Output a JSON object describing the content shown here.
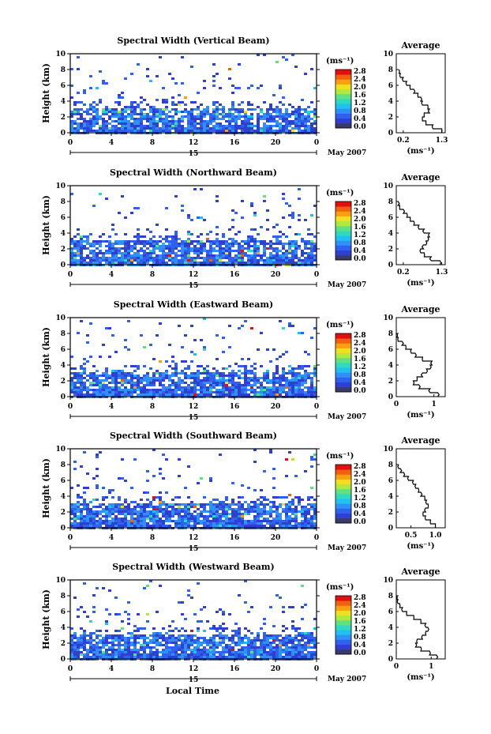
{
  "xlabel": "Local Time",
  "date_label": "May 2007",
  "day_label": "15",
  "colorbar": {
    "unit": "(ms⁻¹)",
    "ticks": [
      "0.0",
      "0.4",
      "0.8",
      "1.2",
      "1.6",
      "2.0",
      "2.4",
      "2.8"
    ],
    "colors": [
      "#3a3a66",
      "#2f3fd0",
      "#2f60ee",
      "#2f90f5",
      "#20c0f0",
      "#30d8c0",
      "#60e080",
      "#b0e840",
      "#f0e020",
      "#f8a010",
      "#f06010",
      "#e01010"
    ]
  },
  "x_ticks": [
    "0",
    "4",
    "8",
    "12",
    "16",
    "20",
    "0"
  ],
  "y_ticks": [
    "0",
    "2",
    "4",
    "6",
    "8",
    "10"
  ],
  "ylabel": "Height (km)",
  "avg_title": "Average",
  "avg_xlabel": "(ms⁻¹)",
  "chart_data": [
    {
      "type": "heatmap",
      "title": "Spectral Width (Vertical Beam)",
      "xlabel": "Local Time",
      "ylabel": "Height (km)",
      "xlim": [
        0,
        24
      ],
      "ylim": [
        0,
        10
      ],
      "avg_profile": {
        "xticks": [
          "0.2",
          "1.3"
        ],
        "xlim": [
          0.0,
          1.4
        ],
        "heights": [
          0.5,
          1.0,
          1.5,
          2.0,
          2.5,
          3.0,
          3.5,
          4.0,
          4.5,
          5.0,
          5.5,
          6.0,
          6.5,
          7.0,
          7.5,
          8.0
        ],
        "values": [
          1.3,
          1.05,
          0.85,
          0.75,
          0.8,
          0.95,
          0.9,
          0.75,
          0.7,
          0.62,
          0.5,
          0.4,
          0.3,
          0.2,
          0.12,
          0.08
        ]
      }
    },
    {
      "type": "heatmap",
      "title": "Spectral Width (Northward Beam)",
      "xlabel": "Local Time",
      "ylabel": "Height (km)",
      "xlim": [
        0,
        24
      ],
      "ylim": [
        0,
        10
      ],
      "avg_profile": {
        "xticks": [
          "0.2",
          "1.3"
        ],
        "xlim": [
          0.0,
          1.4
        ],
        "heights": [
          0.5,
          1.0,
          1.5,
          2.0,
          2.5,
          3.0,
          3.5,
          4.0,
          4.5,
          5.0,
          5.5,
          6.0,
          6.5,
          7.0,
          7.5,
          8.0
        ],
        "values": [
          1.25,
          1.0,
          0.8,
          0.7,
          0.78,
          0.85,
          0.9,
          0.95,
          0.8,
          0.65,
          0.5,
          0.4,
          0.3,
          0.2,
          0.1,
          0.05
        ]
      }
    },
    {
      "type": "heatmap",
      "title": "Spectral Width (Eastward Beam)",
      "xlabel": "Local Time",
      "ylabel": "Height (km)",
      "xlim": [
        0,
        24
      ],
      "ylim": [
        0,
        10
      ],
      "avg_profile": {
        "xticks": [
          "0",
          "1"
        ],
        "xlim": [
          0.0,
          1.3
        ],
        "heights": [
          0.5,
          1.0,
          1.5,
          2.0,
          2.5,
          3.0,
          3.5,
          4.0,
          4.5,
          5.0,
          5.5,
          6.0,
          6.5,
          7.0,
          7.5,
          8.0
        ],
        "values": [
          1.1,
          0.9,
          0.6,
          0.45,
          0.55,
          0.7,
          0.8,
          0.9,
          0.95,
          0.7,
          0.5,
          0.4,
          0.25,
          0.15,
          0.05,
          0.02
        ]
      }
    },
    {
      "type": "heatmap",
      "title": "Spectral Width (Southward Beam)",
      "xlabel": "Local Time",
      "ylabel": "Height (km)",
      "xlim": [
        0,
        24
      ],
      "ylim": [
        0,
        10
      ],
      "avg_profile": {
        "xticks": [
          "0.5",
          "1.0"
        ],
        "xlim": [
          0.2,
          1.2
        ],
        "heights": [
          0.5,
          1.0,
          1.5,
          2.0,
          2.5,
          3.0,
          3.5,
          4.0,
          4.5,
          5.0,
          5.5,
          6.0,
          6.5,
          7.0,
          7.5,
          8.0
        ],
        "values": [
          1.0,
          0.9,
          0.8,
          0.75,
          0.8,
          0.85,
          0.82,
          0.78,
          0.7,
          0.65,
          0.6,
          0.55,
          0.45,
          0.35,
          0.28,
          0.25
        ]
      }
    },
    {
      "type": "heatmap",
      "title": "Spectral Width (Westward Beam)",
      "xlabel": "Local Time",
      "ylabel": "Height (km)",
      "xlim": [
        0,
        24
      ],
      "ylim": [
        0,
        10
      ],
      "avg_profile": {
        "xticks": [
          "0",
          "1"
        ],
        "xlim": [
          0.0,
          1.4
        ],
        "heights": [
          0.5,
          1.0,
          1.5,
          2.0,
          2.5,
          3.0,
          3.5,
          4.0,
          4.5,
          5.0,
          5.5,
          6.0,
          6.5,
          7.0,
          7.5,
          8.0
        ],
        "values": [
          1.15,
          0.95,
          0.7,
          0.55,
          0.6,
          0.75,
          0.85,
          0.9,
          0.85,
          0.7,
          0.5,
          0.3,
          0.18,
          0.1,
          0.05,
          0.02
        ]
      }
    }
  ]
}
